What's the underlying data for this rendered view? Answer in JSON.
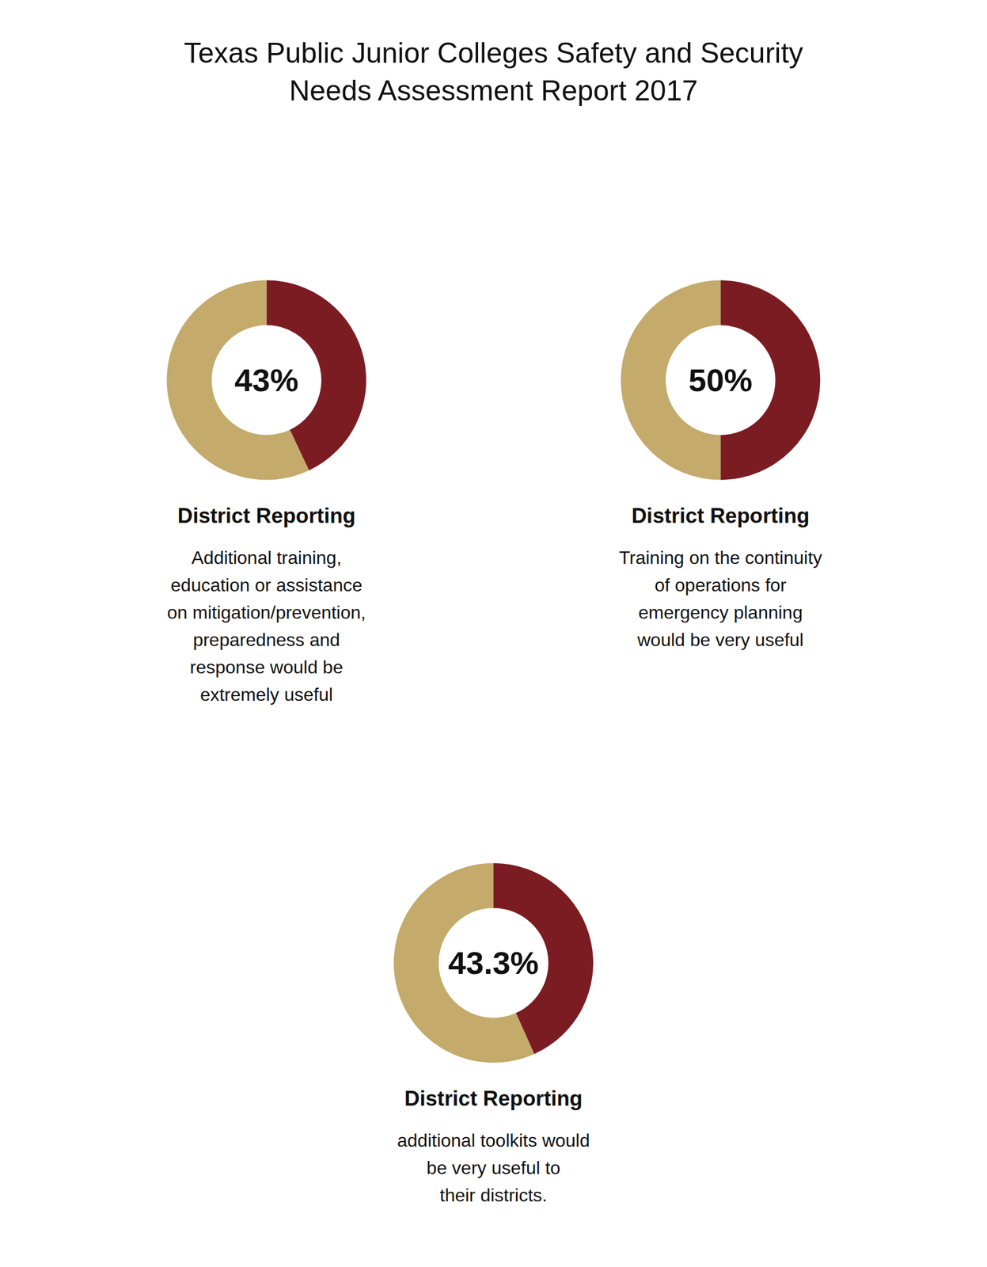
{
  "title": "Texas Public Junior Colleges Safety and Security",
  "subtitle": "Needs Assessment Report 2017",
  "chart_data": [
    {
      "type": "donut",
      "title": "District Reporting",
      "values": [
        43.0,
        57.0
      ],
      "value_labels": [
        "43%",
        null
      ],
      "colors": [
        "#7B1C22",
        "#C4AA6B"
      ],
      "annotations": [
        "Additional training,\neducation or assistance\non mitigation/prevention,\npreparedness and\nresponse would be\nextremely useful"
      ]
    },
    {
      "type": "donut",
      "title": "District Reporting",
      "values": [
        50.0,
        50.0
      ],
      "value_labels": [
        "50%",
        null
      ],
      "colors": [
        "#7B1C22",
        "#C4AA6B"
      ],
      "annotations": [
        "Training on the continuity\nof operations for\nemergency planning\nwould be very useful"
      ]
    },
    {
      "type": "donut",
      "title": "District Reporting",
      "values": [
        43.3,
        56.7
      ],
      "value_labels": [
        "43.3%",
        null
      ],
      "colors": [
        "#7B1C22",
        "#C4AA6B"
      ],
      "annotations": [
        "additional toolkits would\nbe very useful to\ntheir districts."
      ]
    }
  ]
}
